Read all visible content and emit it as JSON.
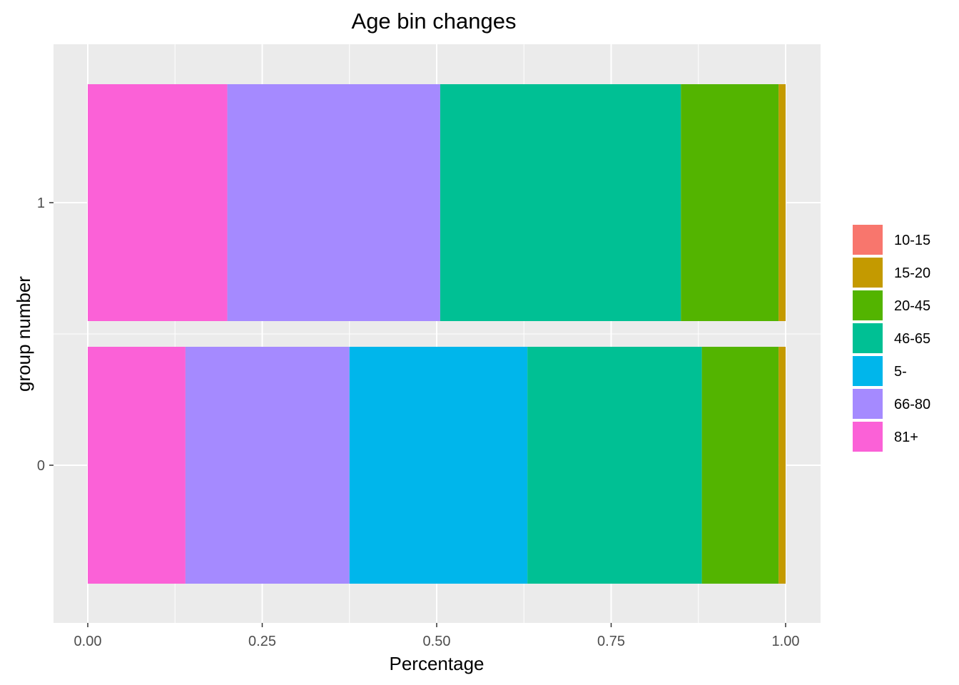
{
  "chart_data": {
    "type": "bar",
    "orientation": "horizontal",
    "stacked": true,
    "title": "Age bin changes",
    "xlabel": "Percentage",
    "ylabel": "group number",
    "xlim": [
      0,
      1
    ],
    "x_ticks": [
      "0.00",
      "0.25",
      "0.50",
      "0.75",
      "1.00"
    ],
    "x_tick_values": [
      0,
      0.25,
      0.5,
      0.75,
      1.0
    ],
    "categories": [
      "0",
      "1"
    ],
    "grid": true,
    "legend_position": "right",
    "legend": [
      "10-15",
      "15-20",
      "20-45",
      "46-65",
      "5-",
      "66-80",
      "81+"
    ],
    "series": [
      {
        "name": "10-15",
        "color": "#F8766D",
        "values": [
          0.0,
          0.0
        ]
      },
      {
        "name": "15-20",
        "color": "#C49A00",
        "values": [
          0.01,
          0.01
        ]
      },
      {
        "name": "20-45",
        "color": "#53B400",
        "values": [
          0.11,
          0.14
        ]
      },
      {
        "name": "46-65",
        "color": "#00C094",
        "values": [
          0.25,
          0.345
        ]
      },
      {
        "name": "5-",
        "color": "#00B6EB",
        "values": [
          0.255,
          0.0
        ]
      },
      {
        "name": "66-80",
        "color": "#A58AFF",
        "values": [
          0.235,
          0.305
        ]
      },
      {
        "name": "81+",
        "color": "#FB61D7",
        "values": [
          0.14,
          0.2
        ]
      }
    ],
    "stack_order_left_to_right": [
      "81+",
      "66-80",
      "5-",
      "46-65",
      "20-45",
      "15-20",
      "10-15"
    ]
  }
}
